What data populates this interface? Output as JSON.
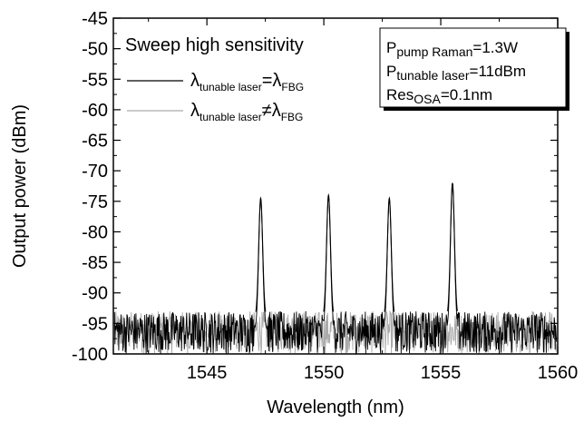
{
  "chart_data": {
    "type": "line",
    "xlabel": "Wavelength (nm)",
    "ylabel": "Output power (dBm)",
    "xlim": [
      1541,
      1560
    ],
    "ylim": [
      -100,
      -45
    ],
    "xticks": [
      1545,
      1550,
      1555,
      1560
    ],
    "yticks": [
      -100,
      -95,
      -90,
      -85,
      -80,
      -75,
      -70,
      -65,
      -60,
      -55,
      -50,
      -45
    ],
    "grid": false,
    "legend": {
      "title": "Sweep high sensitivity",
      "placement": "top-left",
      "entries": [
        {
          "color": "#000000",
          "main": "λ",
          "sub1": "tunable laser",
          "rel": "=λ",
          "sub2": "FBG"
        },
        {
          "color": "#aaaaaa",
          "main": "λ",
          "sub1": "tunable laser",
          "rel": "≠λ",
          "sub2": "FBG"
        }
      ]
    },
    "annotations": {
      "placement": "top-right",
      "lines": [
        {
          "main": "P",
          "sub": "pump Raman",
          "val": "=1.3W"
        },
        {
          "main": "P",
          "sub": "tunable laser",
          "val": "=11dBm"
        },
        {
          "main": "Res",
          "sub": "OSA",
          "val": "=0.1nm"
        }
      ]
    },
    "series": [
      {
        "color": "#000000",
        "noise_floor_range": [
          -100,
          -93
        ],
        "peaks": [
          {
            "x": 1547.3,
            "y": -74.5
          },
          {
            "x": 1550.2,
            "y": -74.0
          },
          {
            "x": 1552.8,
            "y": -74.5
          },
          {
            "x": 1555.5,
            "y": -72.0
          }
        ]
      },
      {
        "color": "#aaaaaa",
        "noise_floor_range": [
          -100,
          -93
        ]
      }
    ]
  }
}
